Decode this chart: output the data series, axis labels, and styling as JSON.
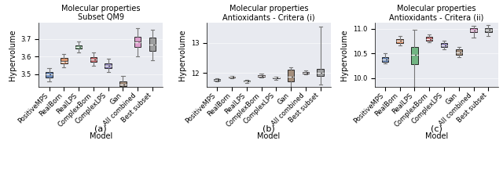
{
  "titles": [
    "Molecular properties\nSubset QM9",
    "Molecular properties\nAntioxidants - Critera (i)",
    "Molecular properties\nAntioxidants - Critera (ii)"
  ],
  "subtitles": [
    "(a)",
    "(b)",
    "(c)"
  ],
  "ylabel": "Hypervolume",
  "xlabel": "Model",
  "categories": [
    "PositiveMPS",
    "RealBorn",
    "RealLPS",
    "ComplexBorn",
    "ComplexLPS",
    "Gan",
    "All combined",
    "Best subset"
  ],
  "box_colors": [
    "#4c72b0",
    "#dd8452",
    "#55a868",
    "#c44e52",
    "#8172b3",
    "#937860",
    "#da8bc3",
    "#8c8c8c"
  ],
  "panels": [
    {
      "whislo": [
        3.458,
        3.538,
        3.622,
        3.548,
        3.513,
        3.412,
        3.602,
        3.578
      ],
      "q1": [
        3.483,
        3.562,
        3.644,
        3.57,
        3.537,
        3.432,
        3.653,
        3.632
      ],
      "med": [
        3.498,
        3.576,
        3.655,
        3.584,
        3.548,
        3.444,
        3.685,
        3.668
      ],
      "mean": [
        3.498,
        3.572,
        3.655,
        3.582,
        3.547,
        3.443,
        3.683,
        3.666
      ],
      "q3": [
        3.513,
        3.593,
        3.664,
        3.597,
        3.562,
        3.46,
        3.714,
        3.706
      ],
      "whishi": [
        3.535,
        3.615,
        3.685,
        3.623,
        3.588,
        3.49,
        3.762,
        3.752
      ],
      "ylim": [
        3.43,
        3.79
      ]
    },
    {
      "whislo": [
        11.72,
        11.82,
        11.68,
        11.86,
        11.79,
        11.55,
        11.96,
        11.62
      ],
      "q1": [
        11.748,
        11.853,
        11.718,
        11.893,
        11.818,
        11.718,
        11.988,
        11.895
      ],
      "med": [
        11.768,
        11.873,
        11.738,
        11.918,
        11.843,
        11.878,
        12.008,
        12.018
      ],
      "mean": [
        11.768,
        11.873,
        11.738,
        11.918,
        11.843,
        11.878,
        12.008,
        12.018
      ],
      "q3": [
        11.798,
        11.893,
        11.758,
        11.943,
        11.863,
        12.118,
        12.038,
        12.148
      ],
      "whishi": [
        11.828,
        11.918,
        11.788,
        11.973,
        11.888,
        12.188,
        12.088,
        13.518
      ],
      "ylim": [
        11.55,
        13.65
      ]
    },
    {
      "whislo": [
        10.3,
        10.66,
        9.82,
        10.72,
        10.58,
        10.42,
        10.83,
        10.86
      ],
      "q1": [
        10.335,
        10.718,
        10.275,
        10.758,
        10.628,
        10.468,
        10.928,
        10.928
      ],
      "med": [
        10.378,
        10.758,
        10.478,
        10.798,
        10.668,
        10.518,
        10.968,
        10.975
      ],
      "mean": [
        10.378,
        10.758,
        10.478,
        10.798,
        10.668,
        10.518,
        10.968,
        10.975
      ],
      "q3": [
        10.428,
        10.798,
        10.638,
        10.838,
        10.708,
        10.578,
        11.008,
        11.008
      ],
      "whishi": [
        10.498,
        10.848,
        10.978,
        10.888,
        10.758,
        10.628,
        11.058,
        11.078
      ],
      "ylim": [
        9.82,
        11.12
      ]
    }
  ],
  "background_color": "#e8eaf0",
  "fig_background": "#ffffff",
  "title_fontsize": 7.0,
  "label_fontsize": 7.0,
  "tick_fontsize": 6.0
}
